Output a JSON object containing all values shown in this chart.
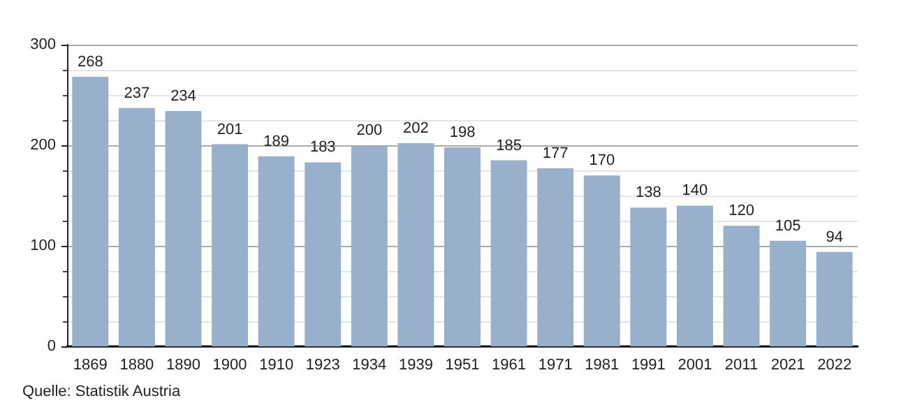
{
  "chart_data": {
    "type": "bar",
    "categories": [
      "1869",
      "1880",
      "1890",
      "1900",
      "1910",
      "1923",
      "1934",
      "1939",
      "1951",
      "1961",
      "1971",
      "1981",
      "1991",
      "2001",
      "2011",
      "2021",
      "2022"
    ],
    "values": [
      268,
      237,
      234,
      201,
      189,
      183,
      200,
      202,
      198,
      185,
      177,
      170,
      138,
      140,
      120,
      105,
      94
    ],
    "color": "#98b0cb",
    "ylim": [
      0,
      300
    ],
    "yticks": [
      0,
      100,
      200,
      300
    ],
    "grid": "y",
    "data_labels": true,
    "annotations": [
      "Quelle: Statistik Austria"
    ]
  }
}
